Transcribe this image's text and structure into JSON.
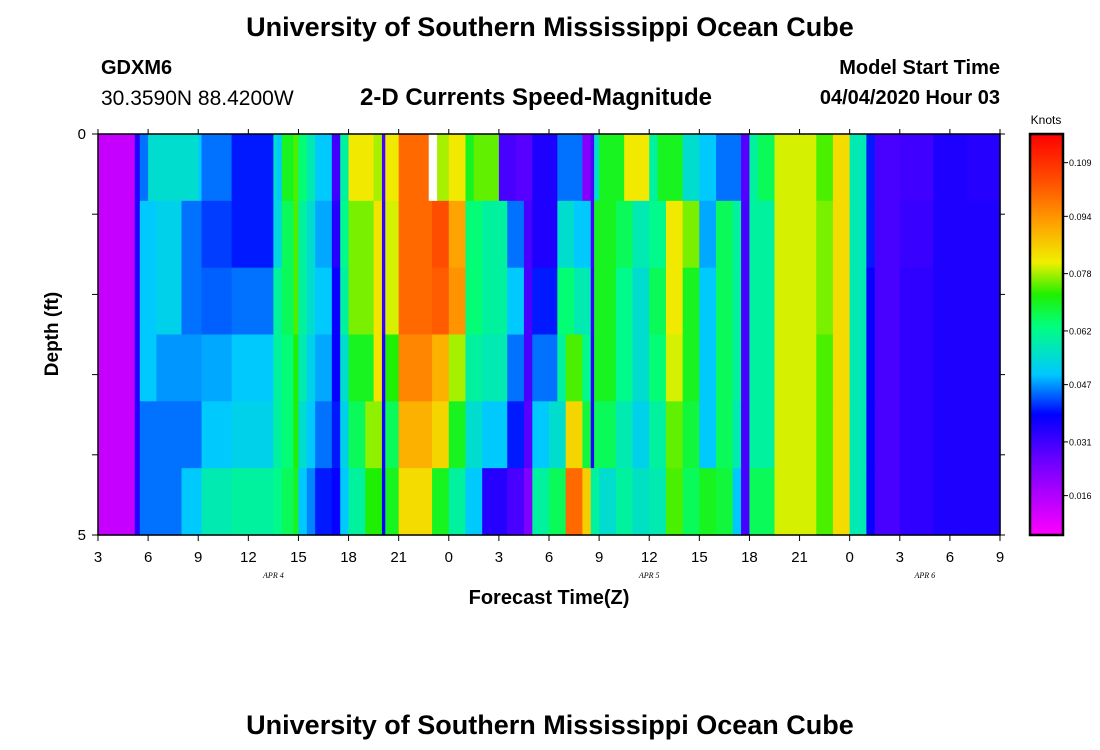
{
  "header": {
    "title": "University of Southern Mississippi Ocean Cube",
    "station": "GDXM6",
    "coords": "30.3590N 88.4200W",
    "subtitle": "2-D Currents Speed-Magnitude",
    "model_label": "Model Start Time",
    "model_time": "04/04/2020 Hour 03"
  },
  "footer": {
    "title": "University of Southern Mississippi Ocean Cube"
  },
  "chart_data": {
    "type": "heatmap",
    "title": "2-D Currents Speed-Magnitude",
    "xlabel": "Forecast Time(Z)",
    "ylabel": "Depth (ft)",
    "x_hours": [
      0,
      54
    ],
    "x_tick_labels": [
      "3",
      "6",
      "9",
      "12",
      "15",
      "18",
      "21",
      "0",
      "3",
      "6",
      "9",
      "12",
      "15",
      "18",
      "21",
      "0",
      "3",
      "6",
      "9"
    ],
    "day_labels": [
      {
        "label": "APR 4",
        "hour": 10.5
      },
      {
        "label": "APR 5",
        "hour": 33
      },
      {
        "label": "APR 6",
        "hour": 49.5
      }
    ],
    "y_range": [
      0,
      5
    ],
    "y_tick_labels": [
      "0",
      "5"
    ],
    "y_ticks": [
      0,
      1,
      2,
      3,
      4,
      5
    ],
    "colorbar": {
      "label": "Knots",
      "min": 0.005,
      "max": 0.117,
      "ticks": [
        "0.109",
        "0.094",
        "0.078",
        "0.062",
        "0.047",
        "0.031",
        "0.016"
      ]
    },
    "missing": [
      {
        "x": 19.8,
        "width": 0.5,
        "row": 0
      }
    ],
    "rows": [
      [
        [
          0,
          0.013
        ],
        [
          2.2,
          0.034
        ],
        [
          2.5,
          0.045
        ],
        [
          3,
          0.055
        ],
        [
          6,
          0.05
        ],
        [
          6.2,
          0.045
        ],
        [
          8,
          0.04
        ],
        [
          10.5,
          0.055
        ],
        [
          10.7,
          0.05
        ],
        [
          11,
          0.07
        ],
        [
          11.7,
          0.074
        ],
        [
          12,
          0.064
        ],
        [
          12.5,
          0.058
        ],
        [
          13,
          0.05
        ],
        [
          14,
          0.031
        ],
        [
          14.5,
          0.06
        ],
        [
          15,
          0.082
        ],
        [
          16.5,
          0.078
        ],
        [
          17,
          0.03
        ],
        [
          17.2,
          0.082
        ],
        [
          18,
          0.1
        ],
        [
          20,
          0.078
        ],
        [
          21,
          0.082
        ],
        [
          22,
          0.07
        ],
        [
          22.5,
          0.075
        ],
        [
          24,
          0.03
        ],
        [
          25,
          0.028
        ],
        [
          26,
          0.035
        ],
        [
          27.5,
          0.045
        ],
        [
          29,
          0.022
        ],
        [
          29.5,
          0.03
        ],
        [
          29.7,
          0.055
        ],
        [
          30,
          0.07
        ],
        [
          31.5,
          0.082
        ],
        [
          33,
          0.06
        ],
        [
          33.5,
          0.07
        ],
        [
          35,
          0.055
        ],
        [
          36,
          0.05
        ],
        [
          37,
          0.045
        ],
        [
          38.5,
          0.028
        ],
        [
          39,
          0.06
        ],
        [
          39.5,
          0.066
        ],
        [
          40.5,
          0.08
        ],
        [
          42,
          0.08
        ],
        [
          43,
          0.074
        ],
        [
          44,
          0.084
        ],
        [
          45,
          0.058
        ],
        [
          46,
          0.04
        ],
        [
          46.5,
          0.03
        ],
        [
          48,
          0.031
        ],
        [
          50,
          0.035
        ],
        [
          52,
          0.034
        ],
        [
          54,
          null
        ]
      ],
      [
        [
          0,
          0.013
        ],
        [
          2.2,
          0.034
        ],
        [
          2.5,
          0.05
        ],
        [
          3.5,
          0.052
        ],
        [
          5,
          0.045
        ],
        [
          6.2,
          0.042
        ],
        [
          8,
          0.04
        ],
        [
          10.5,
          0.053
        ],
        [
          11,
          0.066
        ],
        [
          11.7,
          0.074
        ],
        [
          12,
          0.06
        ],
        [
          12.5,
          0.055
        ],
        [
          13,
          0.048
        ],
        [
          14,
          0.034
        ],
        [
          14.5,
          0.062
        ],
        [
          15,
          0.076
        ],
        [
          16.5,
          0.083
        ],
        [
          17,
          0.032
        ],
        [
          17.2,
          0.08
        ],
        [
          18,
          0.1
        ],
        [
          20,
          0.104
        ],
        [
          21,
          0.092
        ],
        [
          22,
          0.064
        ],
        [
          23,
          0.06
        ],
        [
          24.5,
          0.045
        ],
        [
          25.5,
          0.03
        ],
        [
          26,
          0.035
        ],
        [
          27.5,
          0.055
        ],
        [
          28.5,
          0.05
        ],
        [
          29.5,
          0.03
        ],
        [
          29.7,
          0.07
        ],
        [
          31,
          0.066
        ],
        [
          32,
          0.058
        ],
        [
          33,
          0.062
        ],
        [
          34,
          0.082
        ],
        [
          35,
          0.076
        ],
        [
          36,
          0.048
        ],
        [
          37,
          0.066
        ],
        [
          38,
          0.06
        ],
        [
          38.5,
          0.03
        ],
        [
          39,
          0.06
        ],
        [
          40.5,
          0.08
        ],
        [
          42,
          0.08
        ],
        [
          43,
          0.076
        ],
        [
          44,
          0.084
        ],
        [
          45,
          0.058
        ],
        [
          46,
          0.04
        ],
        [
          46.5,
          0.03
        ],
        [
          48,
          0.032
        ],
        [
          50,
          0.035
        ],
        [
          52,
          0.035
        ],
        [
          54,
          null
        ]
      ],
      [
        [
          0,
          0.013
        ],
        [
          2.2,
          0.034
        ],
        [
          2.5,
          0.05
        ],
        [
          3.5,
          0.052
        ],
        [
          5,
          0.045
        ],
        [
          6.2,
          0.044
        ],
        [
          8,
          0.045
        ],
        [
          10.5,
          0.06
        ],
        [
          11,
          0.066
        ],
        [
          11.7,
          0.074
        ],
        [
          12,
          0.06
        ],
        [
          12.5,
          0.055
        ],
        [
          13,
          0.05
        ],
        [
          14,
          0.038
        ],
        [
          14.5,
          0.06
        ],
        [
          15,
          0.076
        ],
        [
          16.5,
          0.083
        ],
        [
          17,
          0.032
        ],
        [
          17.2,
          0.08
        ],
        [
          18,
          0.1
        ],
        [
          20,
          0.102
        ],
        [
          21,
          0.094
        ],
        [
          22,
          0.064
        ],
        [
          23,
          0.06
        ],
        [
          24.5,
          0.05
        ],
        [
          25.5,
          0.03
        ],
        [
          26,
          0.04
        ],
        [
          27.5,
          0.064
        ],
        [
          28.5,
          0.058
        ],
        [
          29.5,
          0.032
        ],
        [
          29.7,
          0.07
        ],
        [
          31,
          0.062
        ],
        [
          32,
          0.055
        ],
        [
          33,
          0.066
        ],
        [
          34,
          0.082
        ],
        [
          35,
          0.07
        ],
        [
          36,
          0.05
        ],
        [
          37,
          0.066
        ],
        [
          38,
          0.06
        ],
        [
          38.5,
          0.03
        ],
        [
          39,
          0.06
        ],
        [
          40.5,
          0.08
        ],
        [
          42,
          0.08
        ],
        [
          43,
          0.076
        ],
        [
          44,
          0.084
        ],
        [
          45,
          0.058
        ],
        [
          46,
          0.038
        ],
        [
          46.5,
          0.03
        ],
        [
          48,
          0.033
        ],
        [
          50,
          0.035
        ],
        [
          52,
          0.035
        ],
        [
          54,
          null
        ]
      ],
      [
        [
          0,
          0.013
        ],
        [
          2.2,
          0.034
        ],
        [
          2.5,
          0.05
        ],
        [
          3.5,
          0.047
        ],
        [
          5,
          0.047
        ],
        [
          6.2,
          0.048
        ],
        [
          8,
          0.05
        ],
        [
          10.5,
          0.06
        ],
        [
          11,
          0.064
        ],
        [
          11.7,
          0.072
        ],
        [
          12,
          0.058
        ],
        [
          12.5,
          0.052
        ],
        [
          13,
          0.048
        ],
        [
          14,
          0.038
        ],
        [
          14.5,
          0.055
        ],
        [
          15,
          0.07
        ],
        [
          16.5,
          0.083
        ],
        [
          17,
          0.034
        ],
        [
          17.2,
          0.072
        ],
        [
          18,
          0.096
        ],
        [
          20,
          0.09
        ],
        [
          21,
          0.078
        ],
        [
          22,
          0.06
        ],
        [
          23,
          0.058
        ],
        [
          24.5,
          0.045
        ],
        [
          25.5,
          0.03
        ],
        [
          26,
          0.045
        ],
        [
          27.5,
          0.06
        ],
        [
          28,
          0.074
        ],
        [
          29,
          0.062
        ],
        [
          29.5,
          0.033
        ],
        [
          29.7,
          0.07
        ],
        [
          31,
          0.062
        ],
        [
          32,
          0.055
        ],
        [
          33,
          0.064
        ],
        [
          34,
          0.08
        ],
        [
          35,
          0.07
        ],
        [
          36,
          0.05
        ],
        [
          37,
          0.066
        ],
        [
          38,
          0.06
        ],
        [
          38.5,
          0.03
        ],
        [
          39,
          0.06
        ],
        [
          40.5,
          0.08
        ],
        [
          42,
          0.08
        ],
        [
          43,
          0.074
        ],
        [
          44,
          0.084
        ],
        [
          45,
          0.058
        ],
        [
          46,
          0.038
        ],
        [
          46.5,
          0.03
        ],
        [
          48,
          0.033
        ],
        [
          50,
          0.035
        ],
        [
          52,
          0.035
        ],
        [
          54,
          null
        ]
      ],
      [
        [
          0,
          0.013
        ],
        [
          2.2,
          0.034
        ],
        [
          2.5,
          0.045
        ],
        [
          5,
          0.045
        ],
        [
          6.2,
          0.05
        ],
        [
          8,
          0.052
        ],
        [
          10.5,
          0.06
        ],
        [
          11,
          0.064
        ],
        [
          11.7,
          0.072
        ],
        [
          12,
          0.055
        ],
        [
          12.5,
          0.05
        ],
        [
          13,
          0.045
        ],
        [
          14,
          0.04
        ],
        [
          14.5,
          0.052
        ],
        [
          15,
          0.066
        ],
        [
          16,
          0.077
        ],
        [
          17,
          0.036
        ],
        [
          17.2,
          0.066
        ],
        [
          18,
          0.09
        ],
        [
          20,
          0.085
        ],
        [
          21,
          0.07
        ],
        [
          22,
          0.055
        ],
        [
          23,
          0.05
        ],
        [
          24.5,
          0.04
        ],
        [
          25.5,
          0.028
        ],
        [
          26,
          0.05
        ],
        [
          27,
          0.055
        ],
        [
          28,
          0.085
        ],
        [
          29,
          0.068
        ],
        [
          29.5,
          0.034
        ],
        [
          29.7,
          0.066
        ],
        [
          31,
          0.058
        ],
        [
          32,
          0.052
        ],
        [
          33,
          0.06
        ],
        [
          34,
          0.075
        ],
        [
          35,
          0.068
        ],
        [
          36,
          0.05
        ],
        [
          37,
          0.066
        ],
        [
          38,
          0.058
        ],
        [
          38.5,
          0.03
        ],
        [
          39,
          0.06
        ],
        [
          40.5,
          0.08
        ],
        [
          42,
          0.08
        ],
        [
          43,
          0.074
        ],
        [
          44,
          0.084
        ],
        [
          45,
          0.058
        ],
        [
          46,
          0.038
        ],
        [
          46.5,
          0.03
        ],
        [
          48,
          0.033
        ],
        [
          50,
          0.035
        ],
        [
          52,
          0.035
        ],
        [
          54,
          null
        ]
      ],
      [
        [
          0,
          0.013
        ],
        [
          2.2,
          0.034
        ],
        [
          2.5,
          0.045
        ],
        [
          5,
          0.05
        ],
        [
          6.2,
          0.058
        ],
        [
          8,
          0.06
        ],
        [
          10.5,
          0.062
        ],
        [
          11,
          0.066
        ],
        [
          11.7,
          0.07
        ],
        [
          12,
          0.05
        ],
        [
          12.5,
          0.046
        ],
        [
          13,
          0.04
        ],
        [
          14,
          0.038
        ],
        [
          14.5,
          0.05
        ],
        [
          15,
          0.06
        ],
        [
          16,
          0.072
        ],
        [
          17,
          0.038
        ],
        [
          17.2,
          0.07
        ],
        [
          18,
          0.084
        ],
        [
          20,
          0.07
        ],
        [
          21,
          0.06
        ],
        [
          22,
          0.05
        ],
        [
          23,
          0.034
        ],
        [
          24.5,
          0.03
        ],
        [
          25.5,
          0.023
        ],
        [
          26,
          0.06
        ],
        [
          27,
          0.066
        ],
        [
          28,
          0.1
        ],
        [
          29,
          0.086
        ],
        [
          29.5,
          0.06
        ],
        [
          30,
          0.055
        ],
        [
          31,
          0.06
        ],
        [
          32,
          0.056
        ],
        [
          33,
          0.058
        ],
        [
          34,
          0.074
        ],
        [
          35,
          0.066
        ],
        [
          36,
          0.07
        ],
        [
          37,
          0.068
        ],
        [
          38,
          0.05
        ],
        [
          38.5,
          0.03
        ],
        [
          39,
          0.066
        ],
        [
          40.5,
          0.08
        ],
        [
          42,
          0.08
        ],
        [
          43,
          0.074
        ],
        [
          44,
          0.084
        ],
        [
          45,
          0.058
        ],
        [
          46,
          0.038
        ],
        [
          46.5,
          0.03
        ],
        [
          48,
          0.033
        ],
        [
          50,
          0.035
        ],
        [
          52,
          0.035
        ],
        [
          54,
          null
        ]
      ]
    ]
  }
}
